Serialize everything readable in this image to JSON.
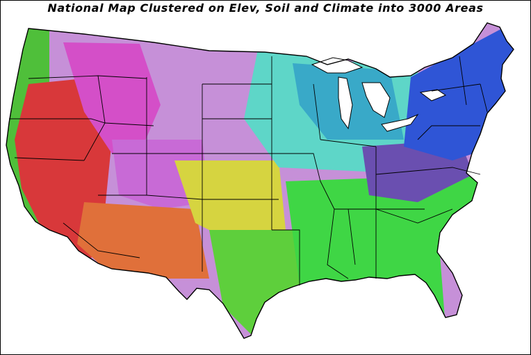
{
  "title": "National Map Clustered on Elev, Soil and Climate into 3000 Areas",
  "colors": {
    "background": "#ffffff",
    "border": "#000000",
    "pacific_coast": "#4fbf3a",
    "west_red": "#d8383a",
    "southwest_orange": "#e0703a",
    "great_basin_magenta": "#d44fc8",
    "rockies_magenta": "#c86ad6",
    "great_plains_lilac": "#c690d8",
    "southern_plains_yellow": "#d6d440",
    "texas_green": "#5ecf3c",
    "southeast_green": "#3fd645",
    "midwest_cyan": "#5ed6c8",
    "great_lakes_teal": "#39a9c8",
    "appalachia_purple": "#6a4fb0",
    "northeast_blue": "#2f55d6",
    "lakes_water": "#ffffff"
  }
}
